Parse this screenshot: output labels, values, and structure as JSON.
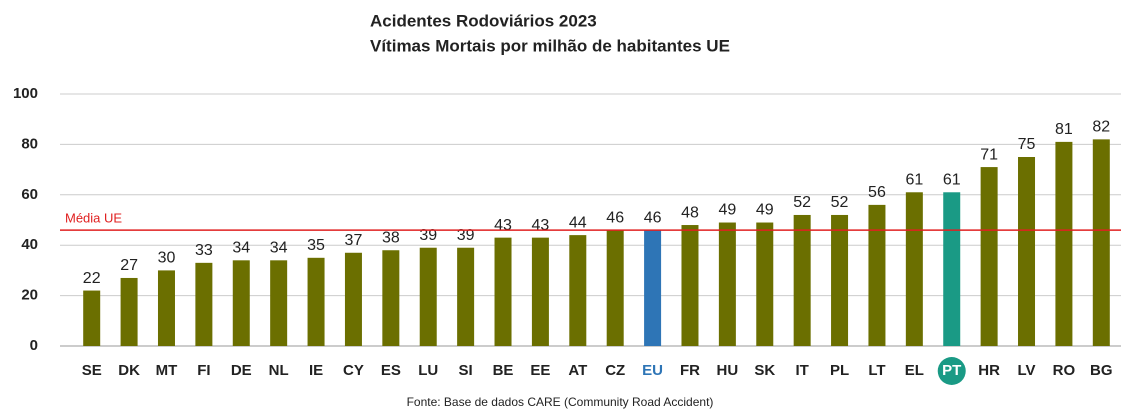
{
  "chart_data": {
    "type": "bar",
    "title": [
      "Acidentes Rodoviários 2023",
      "Vítimas Mortais por milhão de habitantes UE"
    ],
    "source": "Fonte: Base de dados CARE (Community Road Accident)",
    "categories": [
      "SE",
      "DK",
      "MT",
      "FI",
      "DE",
      "NL",
      "IE",
      "CY",
      "ES",
      "LU",
      "SI",
      "BE",
      "EE",
      "AT",
      "CZ",
      "EU",
      "FR",
      "HU",
      "SK",
      "IT",
      "PL",
      "LT",
      "EL",
      "PT",
      "HR",
      "LV",
      "RO",
      "BG"
    ],
    "values": [
      22,
      27,
      30,
      33,
      34,
      34,
      35,
      37,
      38,
      39,
      39,
      43,
      43,
      44,
      46,
      46,
      48,
      49,
      49,
      52,
      52,
      56,
      61,
      61,
      71,
      75,
      81,
      82
    ],
    "colors": [
      "#6b6f00",
      "#6b6f00",
      "#6b6f00",
      "#6b6f00",
      "#6b6f00",
      "#6b6f00",
      "#6b6f00",
      "#6b6f00",
      "#6b6f00",
      "#6b6f00",
      "#6b6f00",
      "#6b6f00",
      "#6b6f00",
      "#6b6f00",
      "#6b6f00",
      "#2e75b6",
      "#6b6f00",
      "#6b6f00",
      "#6b6f00",
      "#6b6f00",
      "#6b6f00",
      "#6b6f00",
      "#6b6f00",
      "#1a9a85",
      "#6b6f00",
      "#6b6f00",
      "#6b6f00",
      "#6b6f00"
    ],
    "highlight_labels": {
      "EU": "text",
      "PT": "badge"
    },
    "reference_line": {
      "value": 46,
      "label": "Média UE",
      "color": "#e02020"
    },
    "ylim": [
      0,
      100
    ],
    "yticks": [
      0,
      20,
      40,
      60,
      80,
      100
    ],
    "grid": true
  }
}
